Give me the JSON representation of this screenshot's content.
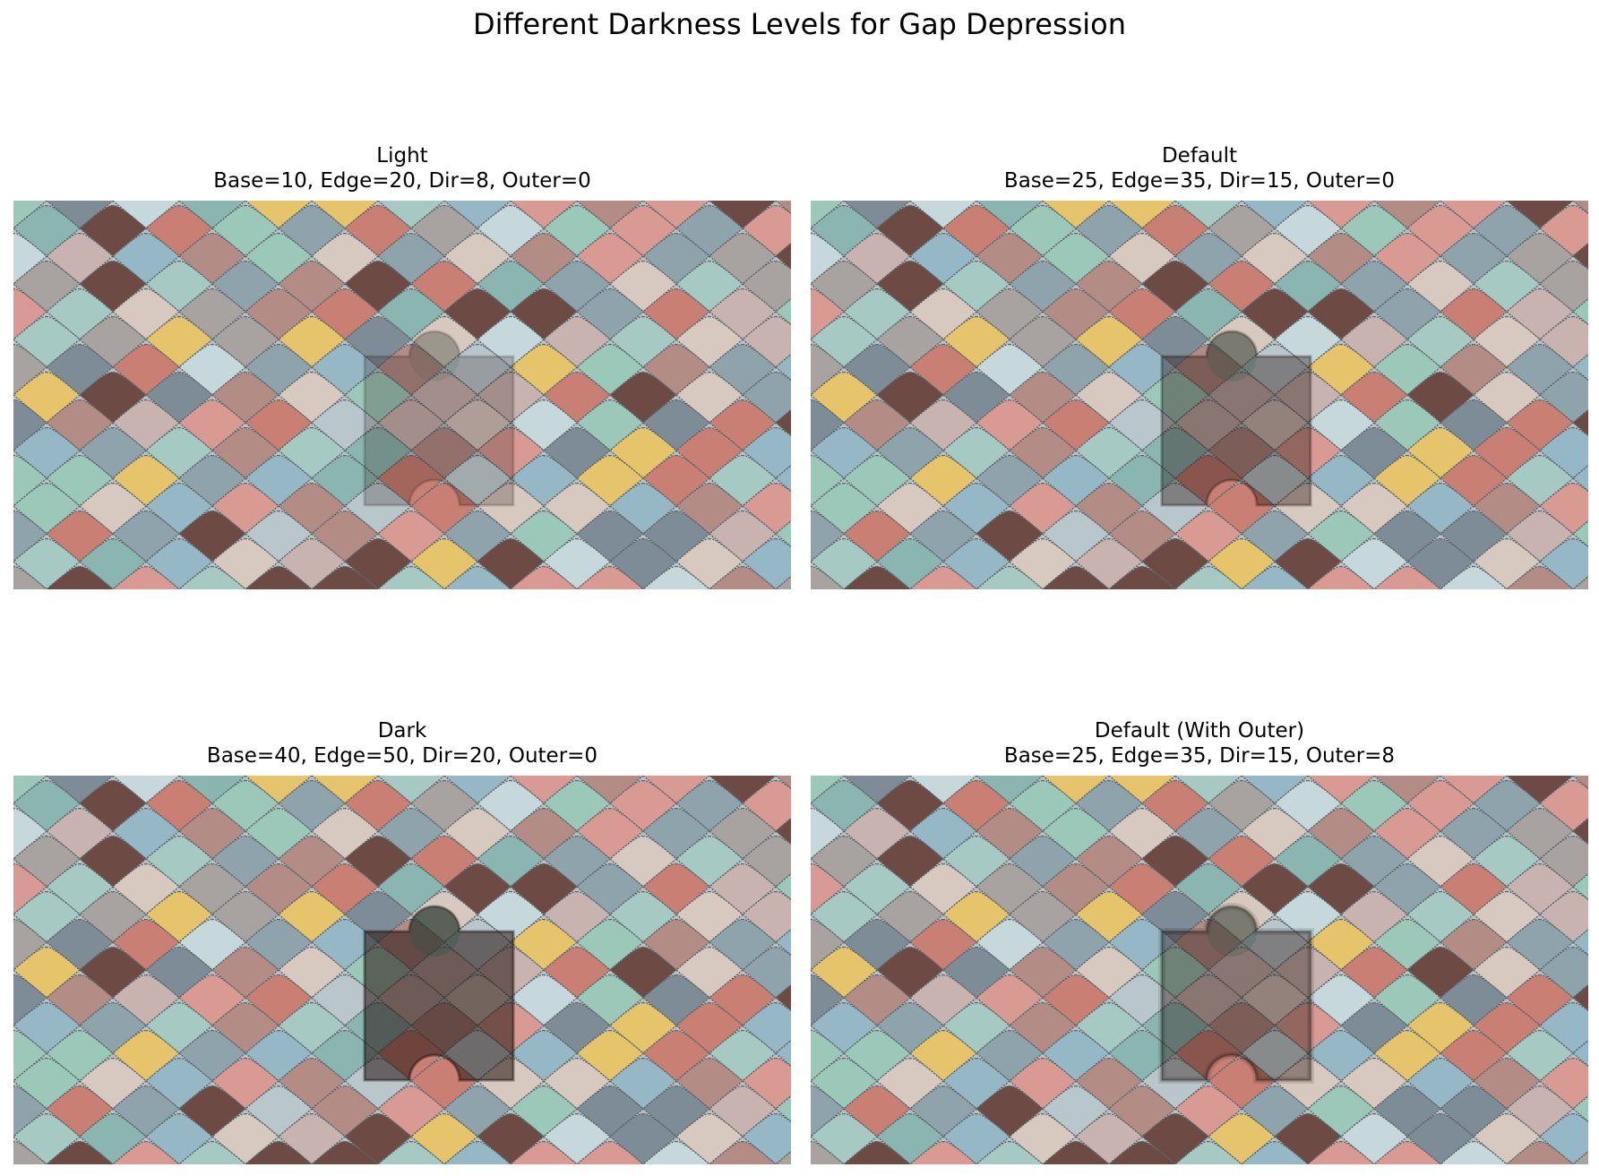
{
  "figure": {
    "title": "Different Darkness Levels for Gap Depression"
  },
  "panels": [
    {
      "name": "Light",
      "title_line1": "Light",
      "title_line2": "Base=10, Edge=20, Dir=8, Outer=0",
      "base": 10,
      "edge": 20,
      "dir": 8,
      "outer": 0
    },
    {
      "name": "Default",
      "title_line1": "Default",
      "title_line2": "Base=25, Edge=35, Dir=15, Outer=0",
      "base": 25,
      "edge": 35,
      "dir": 15,
      "outer": 0
    },
    {
      "name": "Dark",
      "title_line1": "Dark",
      "title_line2": "Base=40, Edge=50, Dir=20, Outer=0",
      "base": 40,
      "edge": 50,
      "dir": 20,
      "outer": 0
    },
    {
      "name": "Default (With Outer)",
      "title_line1": "Default (With Outer)",
      "title_line2": "Base=25, Edge=35, Dir=15, Outer=8",
      "base": 25,
      "edge": 35,
      "dir": 15,
      "outer": 8
    }
  ],
  "tile_palette": [
    "#b9c6cc",
    "#8fa3ad",
    "#a7c9c3",
    "#c9b3b0",
    "#d99a93",
    "#e6c46b",
    "#7d8c97",
    "#c6d8dc",
    "#9cc8b9",
    "#b48c86",
    "#6e4a44",
    "#d7c8c0",
    "#95b7c6",
    "#a8a3a1",
    "#c97f73",
    "#8ab5b0"
  ]
}
